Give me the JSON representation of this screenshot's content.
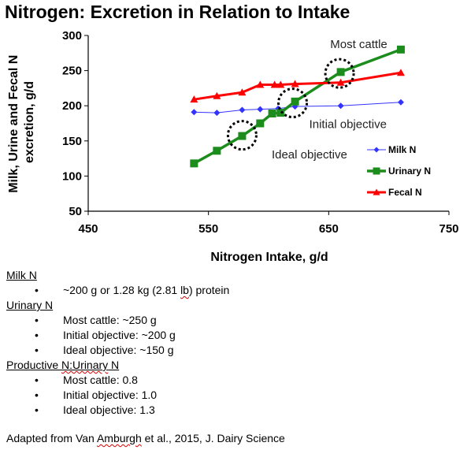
{
  "chart_data": {
    "type": "line",
    "title": "Nitrogen: Excretion in Relation to Intake",
    "xlabel": "Nitrogen Intake, g/d",
    "ylabel_lines": [
      "Milk, Urine and Fecal N",
      "excretion, g/d"
    ],
    "xlim": [
      450,
      750
    ],
    "ylim": [
      50,
      300
    ],
    "xticks": [
      450,
      550,
      650,
      750
    ],
    "yticks": [
      50,
      100,
      150,
      200,
      250,
      300
    ],
    "grid": false,
    "legend_position": "right",
    "series": [
      {
        "name": "Milk N",
        "color": "#3333ff",
        "marker": "diamond",
        "x": [
          538,
          557,
          578,
          593,
          608,
          622,
          660,
          710
        ],
        "y": [
          191,
          190,
          194,
          195,
          196,
          199,
          200,
          205
        ]
      },
      {
        "name": "Urinary N",
        "color": "#1c8c1c",
        "marker": "square",
        "x": [
          538,
          557,
          578,
          593,
          603,
          610,
          622,
          660,
          710
        ],
        "y": [
          118,
          136,
          157,
          175,
          189,
          190,
          206,
          248,
          280
        ]
      },
      {
        "name": "Fecal N",
        "color": "#ff0000",
        "marker": "triangle",
        "x": [
          538,
          557,
          578,
          593,
          605,
          610,
          622,
          660,
          710
        ],
        "y": [
          209,
          214,
          219,
          230,
          230,
          230,
          231,
          233,
          247
        ]
      }
    ],
    "annotations": [
      {
        "text": "Most cattle",
        "x": 675,
        "y": 282
      },
      {
        "text": "Initial objective",
        "x": 666,
        "y": 168
      },
      {
        "text": "Ideal objective",
        "x": 634,
        "y": 125
      }
    ],
    "highlight_circles": [
      {
        "label": "Most cattle",
        "x": 659,
        "y": 246
      },
      {
        "label": "Initial objective",
        "x": 620,
        "y": 204
      },
      {
        "label": "Ideal objective",
        "x": 578,
        "y": 158
      }
    ]
  },
  "notes": {
    "milk": {
      "heading": "Milk N",
      "items": [
        {
          "pre": "~200 g or 1.28 kg (2.81 ",
          "mark": "lb",
          "post": ") protein"
        }
      ]
    },
    "urinary": {
      "heading": "Urinary N",
      "items": [
        "Most cattle: ~250 g",
        "Initial objective: ~200 g",
        "Ideal objective: ~150 g"
      ]
    },
    "productive": {
      "heading_pre": "Productive ",
      "heading_mark": "N:Urinary",
      "heading_post": " N",
      "items": [
        "Most cattle: 0.8",
        "Initial objective: 1.0",
        "Ideal objective: 1.3"
      ]
    }
  },
  "source": {
    "pre": "Adapted from Van ",
    "mark": "Amburgh",
    "post": " et al., 2015, J. Dairy Science"
  }
}
